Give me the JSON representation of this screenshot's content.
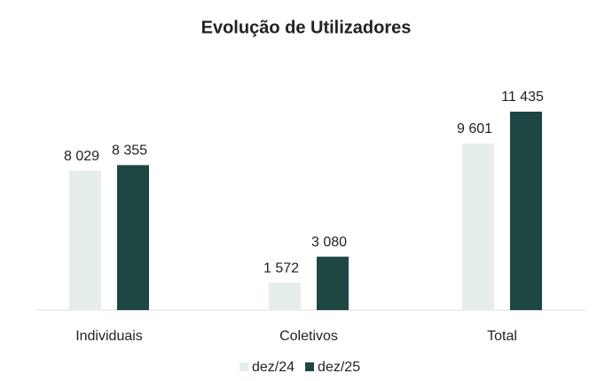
{
  "chart_data": {
    "type": "bar",
    "title": "Evolução de Utilizadores",
    "categories": [
      "Individuais",
      "Coletivos",
      "Total"
    ],
    "series": [
      {
        "name": "dez/24",
        "color": "#e6eeed",
        "values": [
          8029,
          1572,
          9601
        ],
        "value_labels": [
          "8 029",
          "1 572",
          "9 601"
        ]
      },
      {
        "name": "dez/25",
        "color": "#1e4744",
        "values": [
          8355,
          3080,
          11435
        ],
        "value_labels": [
          "8 355",
          "3 080",
          "11 435"
        ]
      }
    ],
    "legend": "bottom"
  }
}
